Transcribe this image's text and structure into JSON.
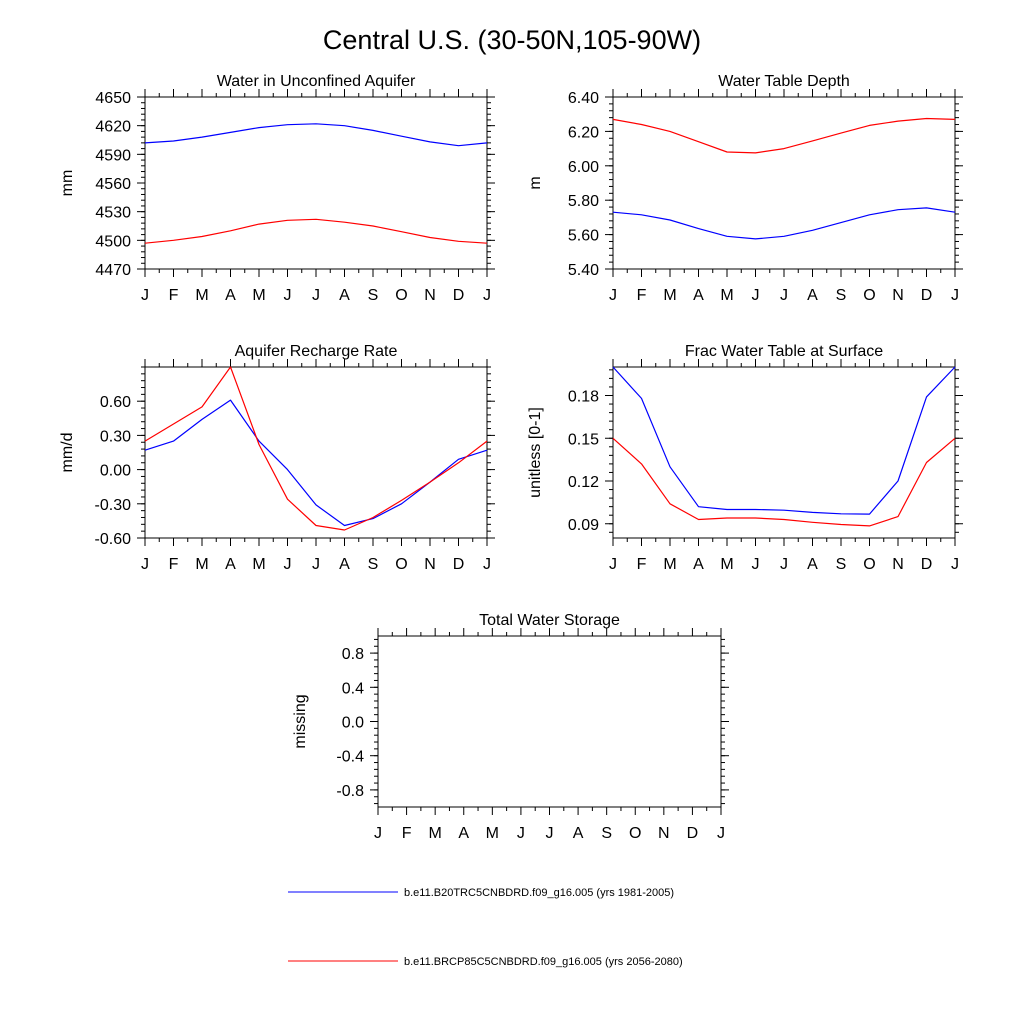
{
  "title": "Central U.S. (30-50N,105-90W)",
  "months": [
    "J",
    "F",
    "M",
    "A",
    "M",
    "J",
    "J",
    "A",
    "S",
    "O",
    "N",
    "D",
    "J"
  ],
  "legend": [
    {
      "label": "b.e11.B20TRC5CNBDRD.f09_g16.005 (yrs 1981-2005)",
      "color": "#0000ff"
    },
    {
      "label": "b.e11.BRCP85C5CNBDRD.f09_g16.005 (yrs 2056-2080)",
      "color": "#ff0000"
    }
  ],
  "chart_data": [
    {
      "type": "line",
      "title": "Water in Unconfined Aquifer",
      "xlabel": "",
      "ylabel": "mm",
      "ylim": [
        4470,
        4650
      ],
      "yticks": [
        4470,
        4500,
        4530,
        4560,
        4590,
        4620,
        4650
      ],
      "ytick_labels": [
        "4470",
        "4500",
        "4530",
        "4560",
        "4590",
        "4620",
        "4650"
      ],
      "series": [
        {
          "name": "b.e11.B20TRC5CNBDRD.f09_g16.005 (yrs 1981-2005)",
          "color": "#0000ff",
          "values": [
            4602,
            4604,
            4608,
            4613,
            4618,
            4621,
            4622,
            4620,
            4615,
            4609,
            4603,
            4599,
            4602
          ]
        },
        {
          "name": "b.e11.BRCP85C5CNBDRD.f09_g16.005 (yrs 2056-2080)",
          "color": "#ff0000",
          "values": [
            4497,
            4500,
            4504,
            4510,
            4517,
            4521,
            4522,
            4519,
            4515,
            4509,
            4503,
            4499,
            4497
          ]
        }
      ]
    },
    {
      "type": "line",
      "title": "Water Table Depth",
      "xlabel": "",
      "ylabel": "m",
      "ylim": [
        5.4,
        6.4
      ],
      "yticks": [
        5.4,
        5.6,
        5.8,
        6.0,
        6.2,
        6.4
      ],
      "ytick_labels": [
        "5.40",
        "5.60",
        "5.80",
        "6.00",
        "6.20",
        "6.40"
      ],
      "series": [
        {
          "name": "b.e11.B20TRC5CNBDRD.f09_g16.005 (yrs 1981-2005)",
          "color": "#0000ff",
          "values": [
            5.73,
            5.715,
            5.685,
            5.635,
            5.59,
            5.575,
            5.59,
            5.625,
            5.67,
            5.715,
            5.745,
            5.755,
            5.73
          ]
        },
        {
          "name": "b.e11.BRCP85C5CNBDRD.f09_g16.005 (yrs 2056-2080)",
          "color": "#ff0000",
          "values": [
            6.27,
            6.24,
            6.2,
            6.14,
            6.08,
            6.075,
            6.1,
            6.145,
            6.19,
            6.235,
            6.26,
            6.275,
            6.27
          ]
        }
      ]
    },
    {
      "type": "line",
      "title": "Aquifer Recharge Rate",
      "xlabel": "",
      "ylabel": "mm/d",
      "ylim": [
        -0.6,
        0.9
      ],
      "yticks": [
        -0.6,
        -0.3,
        0.0,
        0.3,
        0.6
      ],
      "ytick_labels": [
        "-0.60",
        "-0.30",
        "0.00",
        "0.30",
        "0.60"
      ],
      "series": [
        {
          "name": "b.e11.B20TRC5CNBDRD.f09_g16.005 (yrs 1981-2005)",
          "color": "#0000ff",
          "values": [
            0.17,
            0.25,
            0.44,
            0.61,
            0.25,
            0.0,
            -0.31,
            -0.49,
            -0.43,
            -0.3,
            -0.11,
            0.09,
            0.17
          ]
        },
        {
          "name": "b.e11.BRCP85C5CNBDRD.f09_g16.005 (yrs 2056-2080)",
          "color": "#ff0000",
          "values": [
            0.25,
            0.4,
            0.55,
            0.9,
            0.22,
            -0.26,
            -0.49,
            -0.53,
            -0.42,
            -0.27,
            -0.11,
            0.06,
            0.25
          ]
        }
      ]
    },
    {
      "type": "line",
      "title": "Frac Water Table at Surface",
      "xlabel": "",
      "ylabel": "unitless [0-1]",
      "ylim": [
        0.08,
        0.2
      ],
      "yticks": [
        0.09,
        0.12,
        0.15,
        0.18
      ],
      "ytick_labels": [
        "0.09",
        "0.12",
        "0.15",
        "0.18"
      ],
      "series": [
        {
          "name": "b.e11.B20TRC5CNBDRD.f09_g16.005 (yrs 1981-2005)",
          "color": "#0000ff",
          "values": [
            0.2,
            0.178,
            0.13,
            0.102,
            0.1,
            0.1,
            0.0995,
            0.098,
            0.097,
            0.0968,
            0.12,
            0.179,
            0.2
          ]
        },
        {
          "name": "b.e11.BRCP85C5CNBDRD.f09_g16.005 (yrs 2056-2080)",
          "color": "#ff0000",
          "values": [
            0.15,
            0.132,
            0.104,
            0.093,
            0.094,
            0.094,
            0.093,
            0.091,
            0.0895,
            0.0885,
            0.095,
            0.133,
            0.15
          ]
        }
      ]
    },
    {
      "type": "line",
      "title": "Total Water Storage",
      "xlabel": "",
      "ylabel": "missing",
      "ylim": [
        -1.0,
        1.0
      ],
      "yticks": [
        -0.8,
        -0.4,
        0.0,
        0.4,
        0.8
      ],
      "ytick_labels": [
        "-0.8",
        "-0.4",
        "0.0",
        "0.4",
        "0.8"
      ],
      "series": []
    }
  ]
}
